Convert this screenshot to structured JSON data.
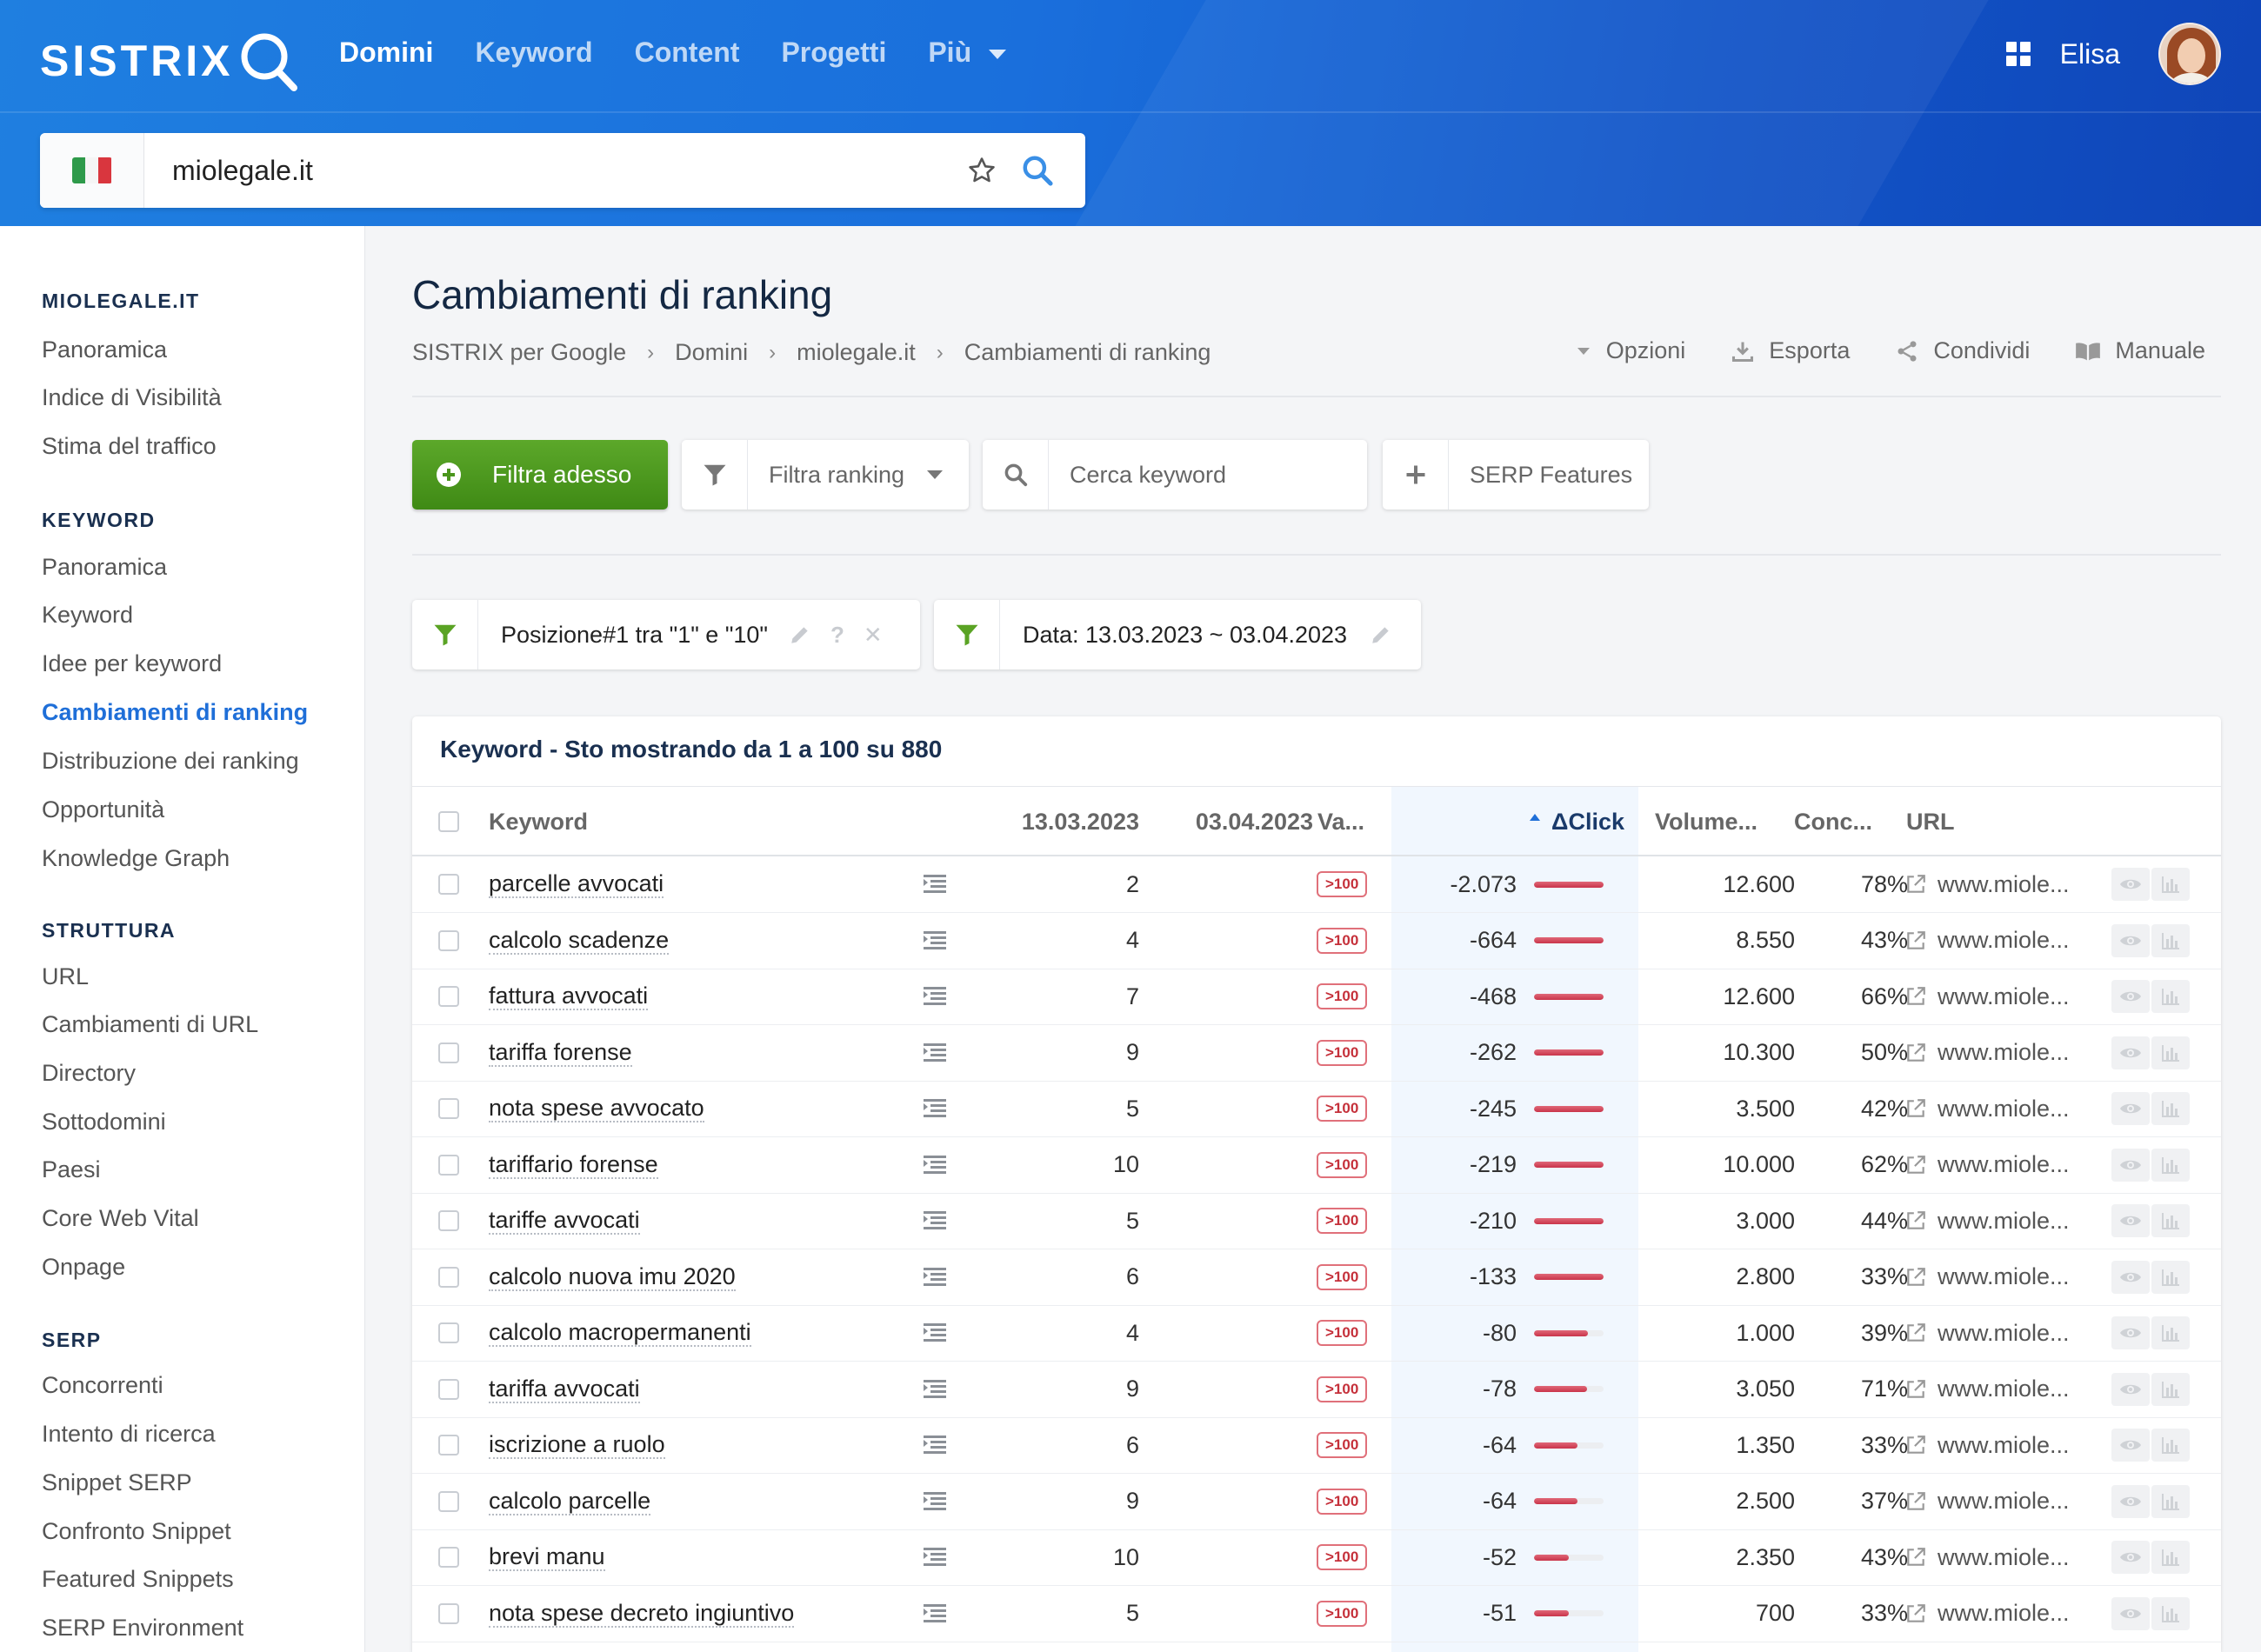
{
  "header": {
    "logo_text": "SISTRIX",
    "nav": [
      {
        "label": "Domini",
        "active": true
      },
      {
        "label": "Keyword"
      },
      {
        "label": "Content"
      },
      {
        "label": "Progetti"
      },
      {
        "label": "Più"
      }
    ],
    "user_name": "Elisa",
    "brand_color": "#1a6fdc"
  },
  "search": {
    "country_flag": "it-flag",
    "value": "miolegale.it"
  },
  "sidebar": {
    "sections": [
      {
        "title": "MIOLEGALE.IT",
        "items": [
          "Panoramica",
          "Indice di Visibilità",
          "Stima del traffico"
        ]
      },
      {
        "title": "KEYWORD",
        "items": [
          "Panoramica",
          "Keyword",
          "Idee per keyword",
          "Cambiamenti di ranking",
          "Distribuzione dei ranking",
          "Opportunità",
          "Knowledge Graph"
        ]
      },
      {
        "title": "STRUTTURA",
        "items": [
          "URL",
          "Cambiamenti di URL",
          "Directory",
          "Sottodomini",
          "Paesi",
          "Core Web Vital",
          "Onpage"
        ]
      },
      {
        "title": "SERP",
        "items": [
          "Concorrenti",
          "Intento di ricerca",
          "Snippet SERP",
          "Confronto Snippet",
          "Featured Snippets",
          "SERP Environment"
        ]
      }
    ],
    "active_item": "Cambiamenti di ranking"
  },
  "page": {
    "title": "Cambiamenti di ranking",
    "breadcrumb": [
      "SISTRIX per Google",
      "Domini",
      "miolegale.it",
      "Cambiamenti di ranking"
    ],
    "actions": [
      "Opzioni",
      "Esporta",
      "Condividi",
      "Manuale"
    ]
  },
  "toolbar": {
    "filter_now": "Filtra adesso",
    "filter_ranking": "Filtra ranking",
    "search_placeholder": "Cerca keyword",
    "serp_features": "SERP Features"
  },
  "filters": [
    {
      "label": "Posizione#1 tra \"1\" e \"10\""
    },
    {
      "label": "Data: 13.03.2023 ~ 03.04.2023"
    }
  ],
  "table": {
    "title": "Keyword - Sto mostrando da 1 a 100 su 880",
    "columns": [
      "Keyword",
      "13.03.2023",
      "03.04.2023",
      "Va...",
      "ΔClick",
      "Volume...",
      "Conc...",
      "URL"
    ],
    "sort_column": "ΔClick",
    "rows": [
      {
        "keyword": "parcelle avvocati",
        "pos1": "2",
        "pos2": "",
        "change": ">100",
        "delta": "-2.073",
        "delta_share": 1.0,
        "volume": "12.600",
        "comp": "78%",
        "url": "www.miole..."
      },
      {
        "keyword": "calcolo scadenze",
        "pos1": "4",
        "pos2": "",
        "change": ">100",
        "delta": "-664",
        "delta_share": 1.0,
        "volume": "8.550",
        "comp": "43%",
        "url": "www.miole..."
      },
      {
        "keyword": "fattura avvocati",
        "pos1": "7",
        "pos2": "",
        "change": ">100",
        "delta": "-468",
        "delta_share": 1.0,
        "volume": "12.600",
        "comp": "66%",
        "url": "www.miole..."
      },
      {
        "keyword": "tariffa forense",
        "pos1": "9",
        "pos2": "",
        "change": ">100",
        "delta": "-262",
        "delta_share": 1.0,
        "volume": "10.300",
        "comp": "50%",
        "url": "www.miole..."
      },
      {
        "keyword": "nota spese avvocato",
        "pos1": "5",
        "pos2": "",
        "change": ">100",
        "delta": "-245",
        "delta_share": 1.0,
        "volume": "3.500",
        "comp": "42%",
        "url": "www.miole..."
      },
      {
        "keyword": "tariffario forense",
        "pos1": "10",
        "pos2": "",
        "change": ">100",
        "delta": "-219",
        "delta_share": 1.0,
        "volume": "10.000",
        "comp": "62%",
        "url": "www.miole..."
      },
      {
        "keyword": "tariffe avvocati",
        "pos1": "5",
        "pos2": "",
        "change": ">100",
        "delta": "-210",
        "delta_share": 1.0,
        "volume": "3.000",
        "comp": "44%",
        "url": "www.miole..."
      },
      {
        "keyword": "calcolo nuova imu 2020",
        "pos1": "6",
        "pos2": "",
        "change": ">100",
        "delta": "-133",
        "delta_share": 1.0,
        "volume": "2.800",
        "comp": "33%",
        "url": "www.miole..."
      },
      {
        "keyword": "calcolo macropermanenti",
        "pos1": "4",
        "pos2": "",
        "change": ">100",
        "delta": "-80",
        "delta_share": 0.78,
        "volume": "1.000",
        "comp": "39%",
        "url": "www.miole..."
      },
      {
        "keyword": "tariffa avvocati",
        "pos1": "9",
        "pos2": "",
        "change": ">100",
        "delta": "-78",
        "delta_share": 0.76,
        "volume": "3.050",
        "comp": "71%",
        "url": "www.miole..."
      },
      {
        "keyword": "iscrizione a ruolo",
        "pos1": "6",
        "pos2": "",
        "change": ">100",
        "delta": "-64",
        "delta_share": 0.63,
        "volume": "1.350",
        "comp": "33%",
        "url": "www.miole..."
      },
      {
        "keyword": "calcolo parcelle",
        "pos1": "9",
        "pos2": "",
        "change": ">100",
        "delta": "-64",
        "delta_share": 0.63,
        "volume": "2.500",
        "comp": "37%",
        "url": "www.miole..."
      },
      {
        "keyword": "brevi manu",
        "pos1": "10",
        "pos2": "",
        "change": ">100",
        "delta": "-52",
        "delta_share": 0.5,
        "volume": "2.350",
        "comp": "43%",
        "url": "www.miole..."
      },
      {
        "keyword": "nota spese decreto ingiuntivo",
        "pos1": "5",
        "pos2": "",
        "change": ">100",
        "delta": "-51",
        "delta_share": 0.5,
        "volume": "700",
        "comp": "33%",
        "url": "www.miole..."
      }
    ]
  }
}
